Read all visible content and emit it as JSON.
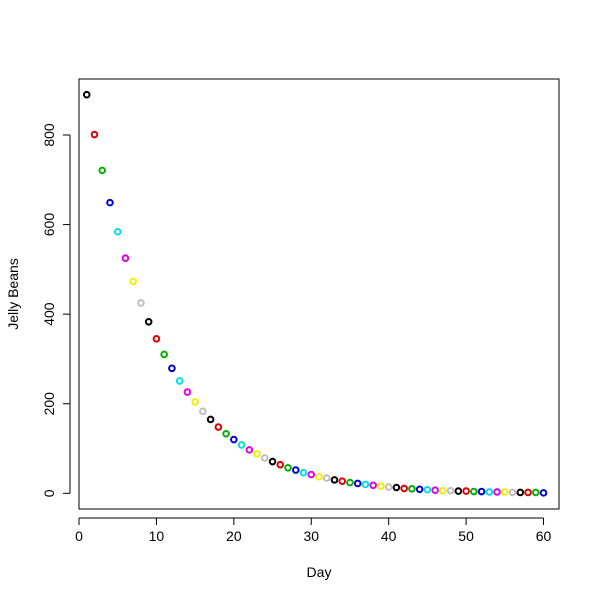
{
  "chart_data": {
    "type": "scatter",
    "title": "",
    "xlabel": "Day",
    "ylabel": "Jelly Beans",
    "xlim": [
      0,
      62
    ],
    "ylim": [
      -35,
      925
    ],
    "x_ticks": [
      0,
      10,
      20,
      30,
      40,
      50,
      60
    ],
    "y_ticks": [
      0,
      200,
      400,
      600,
      800
    ],
    "x_tick_labels": [
      "0",
      "10",
      "20",
      "30",
      "40",
      "50",
      "60"
    ],
    "y_tick_labels": [
      "0",
      "200",
      "400",
      "600",
      "800"
    ],
    "grid": false,
    "legend": "none",
    "marker": "open circle",
    "color_cycle": [
      "#000000",
      "#DF0000",
      "#00B000",
      "#0000D0",
      "#00E0E0",
      "#E000E0",
      "#F0F000",
      "#BEBEBE"
    ],
    "x": [
      1,
      2,
      3,
      4,
      5,
      6,
      7,
      8,
      9,
      10,
      11,
      12,
      13,
      14,
      15,
      16,
      17,
      18,
      19,
      20,
      21,
      22,
      23,
      24,
      25,
      26,
      27,
      28,
      29,
      30,
      31,
      32,
      33,
      34,
      35,
      36,
      37,
      38,
      39,
      40,
      41,
      42,
      43,
      44,
      45,
      46,
      47,
      48,
      49,
      50,
      51,
      52,
      53,
      54,
      55,
      56,
      57,
      58,
      59,
      60
    ],
    "y": [
      890,
      801,
      721,
      649,
      584,
      525,
      473,
      425,
      383,
      345,
      310,
      279,
      251,
      226,
      204,
      183,
      165,
      148,
      133,
      120,
      108,
      97,
      88,
      79,
      71,
      64,
      57,
      52,
      46,
      42,
      37,
      34,
      30,
      27,
      24,
      22,
      20,
      18,
      16,
      14,
      13,
      11,
      10,
      9,
      8,
      7,
      6,
      6,
      5,
      5,
      4,
      4,
      3,
      3,
      3,
      2,
      2,
      2,
      2,
      1
    ]
  }
}
